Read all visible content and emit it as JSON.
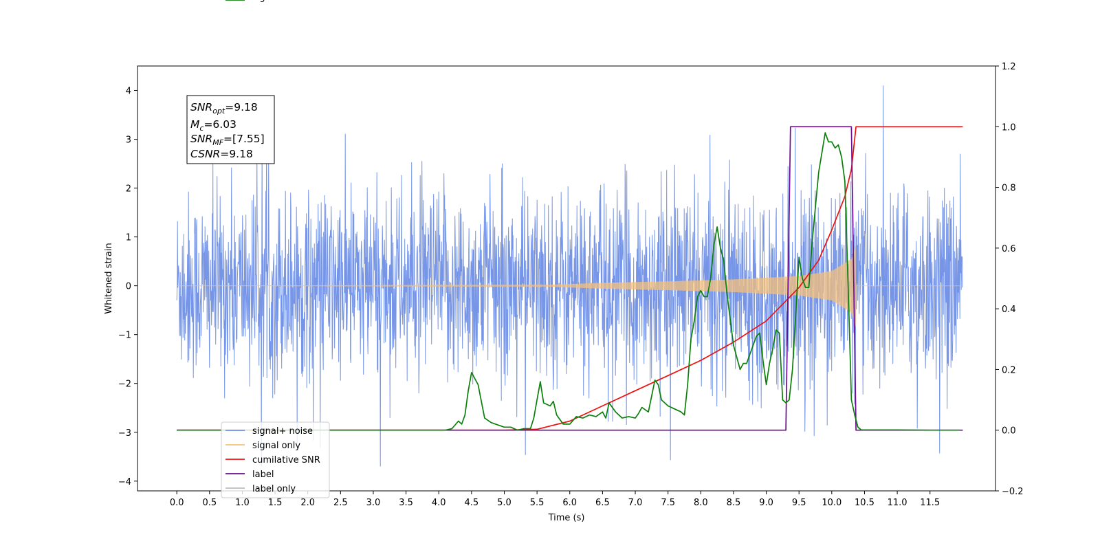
{
  "chart_data": {
    "type": "line",
    "xlabel": "Time (s)",
    "ylabel_left": "Whitened strain",
    "ylabel_right": "",
    "xlim": [
      -0.6,
      12.5
    ],
    "ylim_left": [
      -4.2,
      4.5
    ],
    "ylim_right": [
      -0.2,
      1.2
    ],
    "x_ticks": [
      0.0,
      0.5,
      1.0,
      1.5,
      2.0,
      2.5,
      3.0,
      3.5,
      4.0,
      4.5,
      5.0,
      5.5,
      6.0,
      6.5,
      7.0,
      7.5,
      8.0,
      8.5,
      9.0,
      9.5,
      10.0,
      10.5,
      11.0,
      11.5
    ],
    "x_tick_labels": [
      "0.0",
      "0.5",
      "1.0",
      "1.5",
      "2.0",
      "2.5",
      "3.0",
      "3.5",
      "4.0",
      "4.5",
      "5.0",
      "5.5",
      "6.0",
      "6.5",
      "7.0",
      "7.5",
      "8.0",
      "8.5",
      "9.0",
      "9.5",
      "10.0",
      "10.5",
      "11.0",
      "11.5"
    ],
    "y_left_ticks": [
      -4,
      -3,
      -2,
      -1,
      0,
      1,
      2,
      3,
      4
    ],
    "y_left_tick_labels": [
      "−4",
      "−3",
      "−2",
      "−1",
      "0",
      "1",
      "2",
      "3",
      "4"
    ],
    "y_right_ticks": [
      -0.2,
      0.0,
      0.2,
      0.4,
      0.6,
      0.8,
      1.0,
      1.2
    ],
    "y_right_tick_labels": [
      "−0.2",
      "0.0",
      "0.2",
      "0.4",
      "0.6",
      "0.8",
      "1.0",
      "1.2"
    ],
    "grid": false,
    "legend_placement": "lower-left",
    "annotation": {
      "lines": [
        {
          "base": "SNR",
          "sub": "opt",
          "rest": "=9.18"
        },
        {
          "base": "M",
          "sub": "c",
          "rest": "=6.03"
        },
        {
          "base": "SNR",
          "sub": "MF",
          "rest": "=[7.55]"
        },
        {
          "base": "CSNR",
          "sub": "",
          "rest": "=9.18"
        }
      ]
    },
    "series": [
      {
        "name": "signal+ noise",
        "axis": "left",
        "color": "#6f8fe6",
        "kind": "noise",
        "x_range": [
          0.0,
          12.0
        ],
        "envelope": [
          -3.7,
          4.1
        ]
      },
      {
        "name": "signal only",
        "axis": "left",
        "color": "#f5c07a",
        "kind": "chirp",
        "x_range": [
          0.0,
          10.37
        ],
        "amplitude_profile": {
          "x": [
            0.0,
            5.5,
            6.5,
            7.5,
            8.5,
            9.5,
            10.0,
            10.3,
            10.37
          ],
          "amp": [
            0.0,
            0.01,
            0.06,
            0.09,
            0.13,
            0.2,
            0.3,
            0.55,
            0.85
          ]
        }
      },
      {
        "name": "cumilative SNR",
        "axis": "right",
        "color": "#ee1111",
        "x": [
          0.0,
          5.0,
          5.5,
          6.0,
          6.5,
          7.0,
          7.5,
          8.0,
          8.5,
          9.0,
          9.5,
          9.8,
          10.0,
          10.2,
          10.3,
          10.37,
          10.6,
          11.0,
          11.5,
          12.0
        ],
        "values": [
          0.0,
          0.0,
          0.003,
          0.03,
          0.08,
          0.13,
          0.18,
          0.23,
          0.29,
          0.36,
          0.47,
          0.56,
          0.66,
          0.77,
          0.86,
          1.0,
          1.0,
          1.0,
          1.0,
          1.0
        ]
      },
      {
        "name": "label",
        "axis": "right",
        "color": "#6a0d8f",
        "x": [
          0.0,
          9.3,
          9.37,
          10.3,
          10.37,
          12.0
        ],
        "values": [
          0.0,
          0.0,
          1.0,
          1.0,
          0.0,
          0.0
        ]
      },
      {
        "name": "label only",
        "axis": "right",
        "color": "#bbbbbb",
        "legend_only": true
      },
      {
        "name": "signal statistics",
        "axis": "right",
        "color": "#0a7f0a",
        "x": [
          0.0,
          4.0,
          4.1,
          4.2,
          4.3,
          4.35,
          4.4,
          4.45,
          4.5,
          4.6,
          4.7,
          4.8,
          5.0,
          5.1,
          5.2,
          5.3,
          5.4,
          5.45,
          5.5,
          5.55,
          5.6,
          5.7,
          5.75,
          5.8,
          5.9,
          6.0,
          6.1,
          6.2,
          6.3,
          6.4,
          6.5,
          6.55,
          6.6,
          6.7,
          6.8,
          6.9,
          7.0,
          7.05,
          7.1,
          7.2,
          7.3,
          7.35,
          7.4,
          7.45,
          7.5,
          7.6,
          7.7,
          7.75,
          7.8,
          7.85,
          7.9,
          7.95,
          8.0,
          8.05,
          8.1,
          8.15,
          8.2,
          8.25,
          8.3,
          8.35,
          8.4,
          8.5,
          8.6,
          8.65,
          8.7,
          8.75,
          8.8,
          8.85,
          8.9,
          8.95,
          9.0,
          9.05,
          9.1,
          9.15,
          9.2,
          9.25,
          9.3,
          9.35,
          9.4,
          9.45,
          9.5,
          9.55,
          9.6,
          9.65,
          9.7,
          9.8,
          9.9,
          9.95,
          10.0,
          10.05,
          10.1,
          10.15,
          10.2,
          10.25,
          10.3,
          10.35,
          10.4,
          10.45,
          10.5,
          10.6,
          11.0,
          11.5,
          11.95
        ],
        "values": [
          0.0,
          0.0,
          0.0,
          0.005,
          0.03,
          0.02,
          0.05,
          0.13,
          0.19,
          0.15,
          0.04,
          0.025,
          0.01,
          0.01,
          0.0,
          0.005,
          0.005,
          0.04,
          0.1,
          0.16,
          0.09,
          0.08,
          0.095,
          0.05,
          0.02,
          0.02,
          0.045,
          0.04,
          0.05,
          0.045,
          0.06,
          0.04,
          0.09,
          0.06,
          0.04,
          0.045,
          0.04,
          0.055,
          0.075,
          0.06,
          0.165,
          0.15,
          0.1,
          0.09,
          0.08,
          0.07,
          0.06,
          0.05,
          0.15,
          0.3,
          0.36,
          0.44,
          0.46,
          0.44,
          0.44,
          0.5,
          0.61,
          0.67,
          0.6,
          0.56,
          0.45,
          0.28,
          0.2,
          0.22,
          0.22,
          0.25,
          0.28,
          0.31,
          0.32,
          0.23,
          0.15,
          0.22,
          0.27,
          0.33,
          0.32,
          0.1,
          0.09,
          0.1,
          0.2,
          0.38,
          0.57,
          0.5,
          0.47,
          0.47,
          0.62,
          0.85,
          0.98,
          0.95,
          0.95,
          0.93,
          0.94,
          0.9,
          0.82,
          0.48,
          0.1,
          0.05,
          0.01,
          0.001,
          0.001,
          0.001,
          0.001,
          0.0,
          0.0
        ]
      }
    ]
  }
}
